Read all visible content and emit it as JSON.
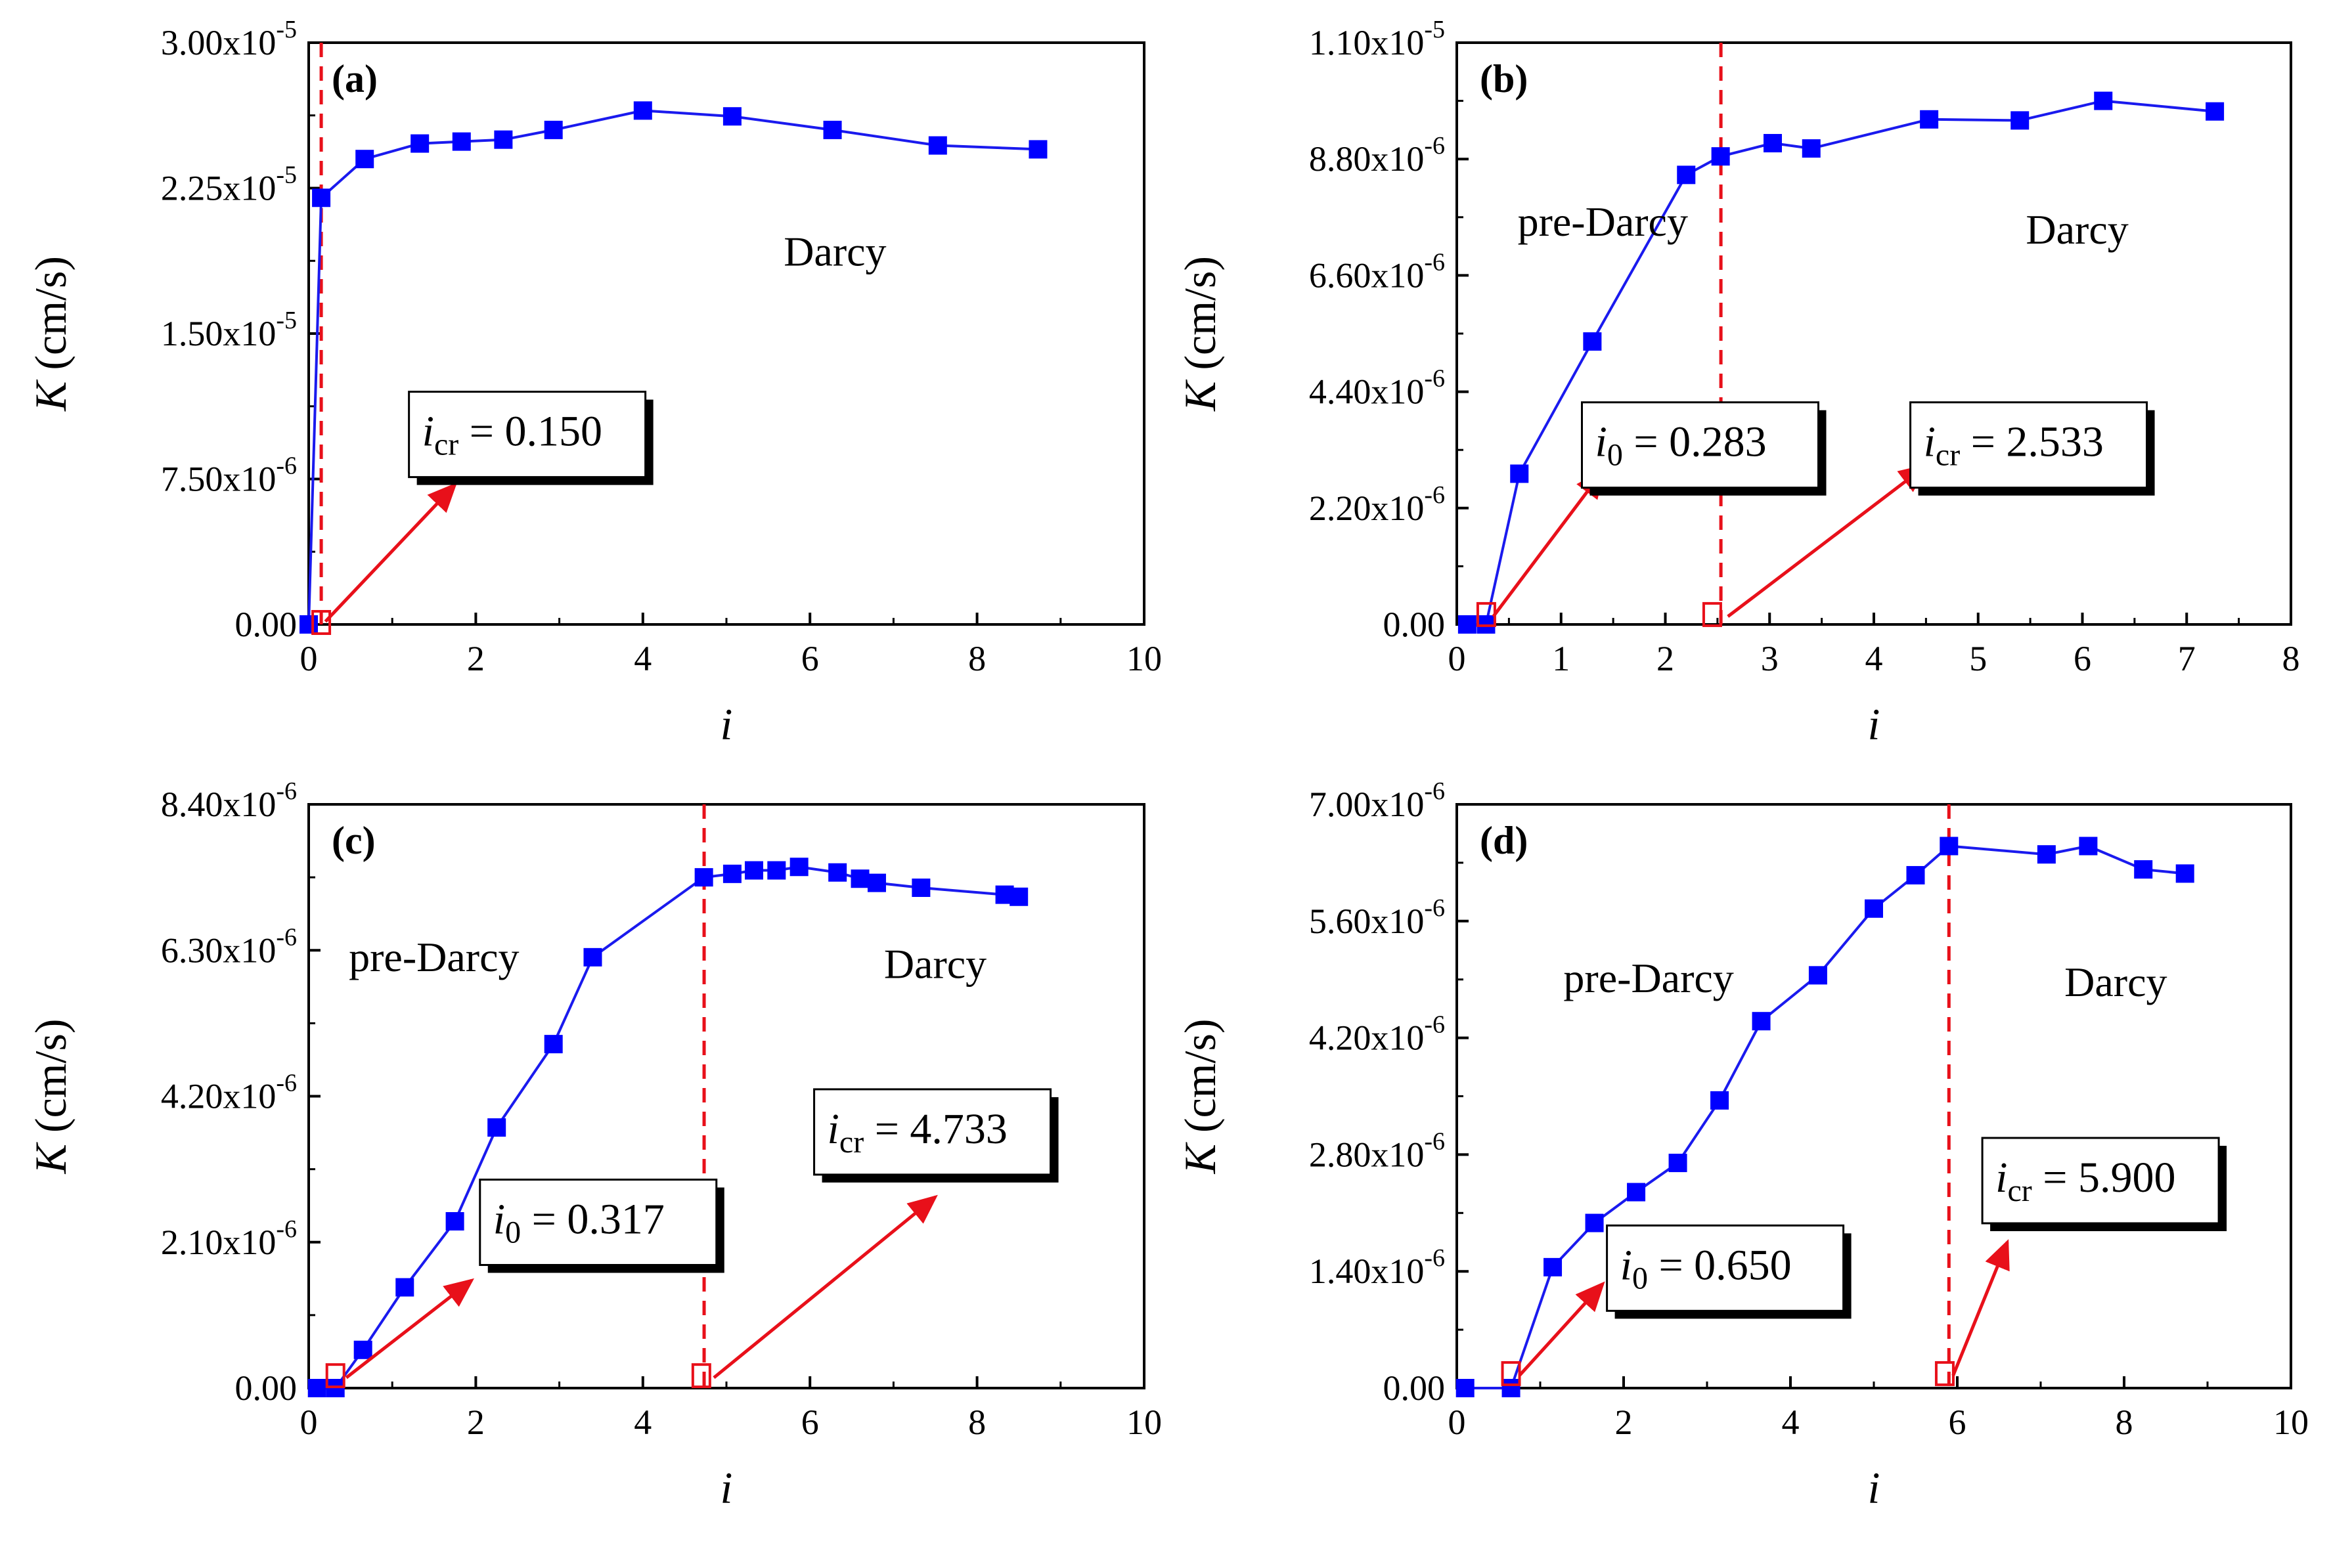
{
  "colors": {
    "series": "#1a1aee",
    "marker": "#0000ff",
    "threshold": "#e8101a",
    "arrow": "#e8101a",
    "axis": "#000000"
  },
  "chart_data": [
    {
      "type": "line",
      "label": "(a)",
      "xlabel": "i",
      "ylabel_var": "K",
      "ylabel_unit": "(cm/s)",
      "xlim": [
        0,
        10
      ],
      "xticks": [
        0,
        2,
        4,
        6,
        8,
        10
      ],
      "xtick_labels": [
        "0",
        "2",
        "4",
        "6",
        "8",
        "10"
      ],
      "ylim": [
        0,
        3e-05
      ],
      "yticks": [
        0,
        7.5e-06,
        1.5e-05,
        2.25e-05,
        3e-05
      ],
      "ytick_mant": [
        "0.00",
        "7.50x10",
        "1.50x10",
        "2.25x10",
        "3.00x10"
      ],
      "ytick_exp": [
        "",
        "-6",
        "-5",
        "-5",
        "-5"
      ],
      "series": [
        {
          "name": "K",
          "x": [
            0,
            0.15,
            0.67,
            1.33,
            1.83,
            2.33,
            2.93,
            4.0,
            5.07,
            6.27,
            7.53,
            8.73
          ],
          "y": [
            0,
            2.2e-05,
            2.4e-05,
            2.48e-05,
            2.49e-05,
            2.5e-05,
            2.55e-05,
            2.65e-05,
            2.62e-05,
            2.55e-05,
            2.47e-05,
            2.45e-05
          ]
        }
      ],
      "thresholds": [
        {
          "x": 0.15
        }
      ],
      "open_markers": [
        {
          "x": 0.15,
          "y": 0
        }
      ],
      "regions": [
        {
          "text": "Darcy",
          "x": 6.3,
          "y": 1.85e-05
        }
      ],
      "annotations": [
        {
          "var": "i",
          "sub": "cr",
          "rest": " = 0.150",
          "box_x": 1.2,
          "box_y": 1.2e-05,
          "arrow_from": [
            0.2,
            1.5e-07
          ],
          "arrow_to": [
            1.75,
            7.2e-06
          ]
        }
      ]
    },
    {
      "type": "line",
      "label": "(b)",
      "xlabel": "i",
      "ylabel_var": "K",
      "ylabel_unit": "(cm/s)",
      "xlim": [
        0,
        8
      ],
      "xticks": [
        0,
        1,
        2,
        3,
        4,
        5,
        6,
        7,
        8
      ],
      "xtick_labels": [
        "0",
        "1",
        "2",
        "3",
        "4",
        "5",
        "6",
        "7",
        "8"
      ],
      "ylim": [
        0,
        1.1e-05
      ],
      "yticks": [
        0,
        2.2e-06,
        4.4e-06,
        6.6e-06,
        8.8e-06,
        1.1e-05
      ],
      "ytick_mant": [
        "0.00",
        "2.20x10",
        "4.40x10",
        "6.60x10",
        "8.80x10",
        "1.10x10"
      ],
      "ytick_exp": [
        "",
        "-6",
        "-6",
        "-6",
        "-6",
        "-5"
      ],
      "series": [
        {
          "name": "K",
          "x": [
            0.1,
            0.28,
            0.6,
            1.3,
            2.2,
            2.53,
            3.03,
            3.4,
            4.53,
            5.4,
            6.2,
            7.27
          ],
          "y": [
            0,
            0,
            2.85e-06,
            5.35e-06,
            8.5e-06,
            8.85e-06,
            9.1e-06,
            9e-06,
            9.55e-06,
            9.53e-06,
            9.9e-06,
            9.7e-06
          ]
        }
      ],
      "thresholds": [
        {
          "x": 2.533
        }
      ],
      "open_markers": [
        {
          "x": 0.283,
          "y": 1.5e-07
        },
        {
          "x": 2.45,
          "y": 1.5e-07
        }
      ],
      "regions": [
        {
          "text": "pre-Darcy",
          "x": 1.4,
          "y": 7.35e-06
        },
        {
          "text": "Darcy",
          "x": 5.95,
          "y": 7.2e-06
        }
      ],
      "annotations": [
        {
          "var": "i",
          "sub": "0",
          "rest": " = 0.283",
          "box_x": 1.2,
          "box_y": 4.2e-06,
          "arrow_from": [
            0.35,
            1.5e-07
          ],
          "arrow_to": [
            1.4,
            2.9e-06
          ]
        },
        {
          "var": "i",
          "sub": "cr",
          "rest": " = 2.533",
          "box_x": 4.35,
          "box_y": 4.2e-06,
          "arrow_from": [
            2.6,
            1.5e-07
          ],
          "arrow_to": [
            4.5,
            3e-06
          ]
        }
      ]
    },
    {
      "type": "line",
      "label": "(c)",
      "xlabel": "i",
      "ylabel_var": "K",
      "ylabel_unit": "(cm/s)",
      "xlim": [
        0,
        10
      ],
      "xticks": [
        0,
        2,
        4,
        6,
        8,
        10
      ],
      "xtick_labels": [
        "0",
        "2",
        "4",
        "6",
        "8",
        "10"
      ],
      "ylim": [
        0,
        8.4e-06
      ],
      "yticks": [
        0,
        2.1e-06,
        4.2e-06,
        6.3e-06,
        8.4e-06
      ],
      "ytick_mant": [
        "0.00",
        "2.10x10",
        "4.20x10",
        "6.30x10",
        "8.40x10"
      ],
      "ytick_exp": [
        "",
        "-6",
        "-6",
        "-6",
        "-6"
      ],
      "series": [
        {
          "name": "K",
          "x": [
            0.1,
            0.32,
            0.65,
            1.15,
            1.75,
            2.25,
            2.93,
            3.4,
            4.73,
            5.07,
            5.33,
            5.6,
            5.87,
            6.33,
            6.6,
            6.8,
            7.33,
            8.33,
            8.5
          ],
          "y": [
            0,
            0,
            5.5e-07,
            1.45e-06,
            2.4e-06,
            3.75e-06,
            4.95e-06,
            6.2e-06,
            7.35e-06,
            7.4e-06,
            7.45e-06,
            7.45e-06,
            7.5e-06,
            7.42e-06,
            7.33e-06,
            7.27e-06,
            7.2e-06,
            7.1e-06,
            7.07e-06
          ]
        }
      ],
      "thresholds": [
        {
          "x": 4.733
        }
      ],
      "open_markers": [
        {
          "x": 0.32,
          "y": 1.5e-07
        },
        {
          "x": 4.7,
          "y": 1.5e-07
        }
      ],
      "regions": [
        {
          "text": "pre-Darcy",
          "x": 1.5,
          "y": 6e-06
        },
        {
          "text": "Darcy",
          "x": 7.5,
          "y": 5.9e-06
        }
      ],
      "annotations": [
        {
          "var": "i",
          "sub": "0",
          "rest": " = 0.317",
          "box_x": 2.05,
          "box_y": 3e-06,
          "arrow_from": [
            0.45,
            1.5e-07
          ],
          "arrow_to": [
            1.95,
            1.55e-06
          ]
        },
        {
          "var": "i",
          "sub": "cr",
          "rest": " = 4.733",
          "box_x": 6.05,
          "box_y": 4.3e-06,
          "arrow_from": [
            4.85,
            1.5e-07
          ],
          "arrow_to": [
            7.5,
            2.75e-06
          ]
        }
      ]
    },
    {
      "type": "line",
      "label": "(d)",
      "xlabel": "i",
      "ylabel_var": "K",
      "ylabel_unit": "(cm/s)",
      "xlim": [
        0,
        10
      ],
      "xticks": [
        0,
        2,
        4,
        6,
        8,
        10
      ],
      "xtick_labels": [
        "0",
        "2",
        "4",
        "6",
        "8",
        "10"
      ],
      "ylim": [
        0,
        7e-06
      ],
      "yticks": [
        0,
        1.4e-06,
        2.8e-06,
        4.2e-06,
        5.6e-06,
        7e-06
      ],
      "ytick_mant": [
        "0.00",
        "1.40x10",
        "2.80x10",
        "4.20x10",
        "5.60x10",
        "7.00x10"
      ],
      "ytick_exp": [
        "",
        "-6",
        "-6",
        "-6",
        "-6",
        "-6"
      ],
      "series": [
        {
          "name": "K",
          "x": [
            0.1,
            0.65,
            1.15,
            1.65,
            2.15,
            2.65,
            3.15,
            3.65,
            4.33,
            5.0,
            5.5,
            5.9,
            7.07,
            7.57,
            8.23,
            8.73
          ],
          "y": [
            0,
            0,
            1.45e-06,
            1.98e-06,
            2.35e-06,
            2.7e-06,
            3.45e-06,
            4.4e-06,
            4.95e-06,
            5.75e-06,
            6.15e-06,
            6.5e-06,
            6.4e-06,
            6.5e-06,
            6.22e-06,
            6.17e-06
          ]
        }
      ],
      "thresholds": [
        {
          "x": 5.9
        }
      ],
      "open_markers": [
        {
          "x": 0.65,
          "y": 1.5e-07
        },
        {
          "x": 5.85,
          "y": 1.5e-07
        }
      ],
      "regions": [
        {
          "text": "pre-Darcy",
          "x": 2.3,
          "y": 4.75e-06
        },
        {
          "text": "Darcy",
          "x": 7.9,
          "y": 4.7e-06
        }
      ],
      "annotations": [
        {
          "var": "i",
          "sub": "0",
          "rest": " = 0.650",
          "box_x": 1.8,
          "box_y": 1.95e-06,
          "arrow_from": [
            0.75,
            1.5e-07
          ],
          "arrow_to": [
            1.75,
            1.25e-06
          ]
        },
        {
          "var": "i",
          "sub": "cr",
          "rest": " = 5.900",
          "box_x": 6.3,
          "box_y": 3e-06,
          "arrow_from": [
            5.95,
            1.5e-07
          ],
          "arrow_to": [
            6.6,
            1.75e-06
          ]
        }
      ]
    }
  ]
}
